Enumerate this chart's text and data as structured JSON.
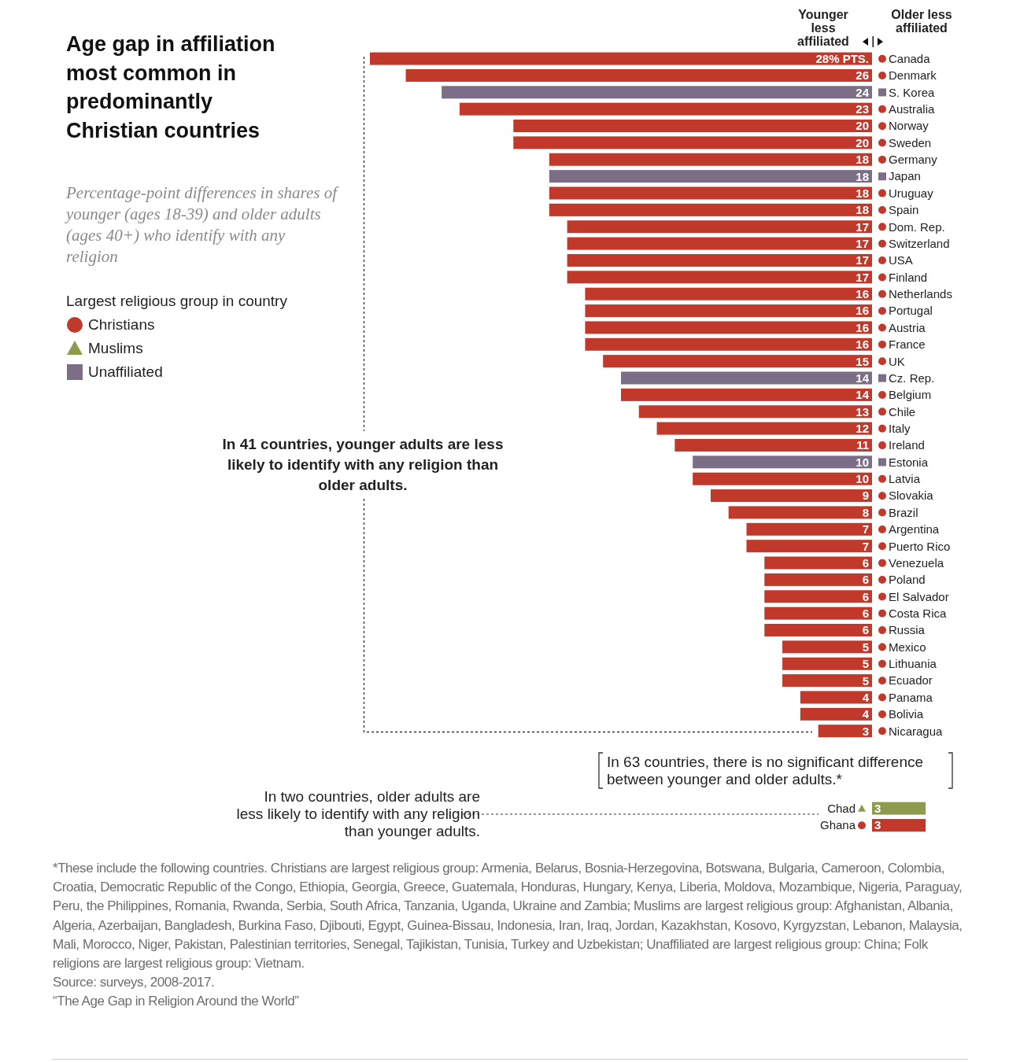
{
  "chart_data": [
    {
      "type": "bar",
      "orientation": "horizontal",
      "stacked": true,
      "title": "Age gap in affiliation most common in predominantly Christian countries",
      "subtitle": "Percentage-point differences in shares of younger (ages 18-39) and older adults (ages 40+) who identify with any religion",
      "legend_title": "Largest religious group in country",
      "legend": "top left",
      "tick_labels": "y",
      "xlim": [
        28,
        0
      ],
      "categories": [
        "Canada",
        "Denmark",
        "S. Korea",
        "Australia",
        "Norway",
        "Sweden",
        "Germany",
        "Japan",
        "Uruguay",
        "Spain",
        "Dom. Rep.",
        "Switzerland",
        "USA",
        "Finland",
        "Netherlands",
        "Portugal",
        "Austria",
        "France",
        "UK",
        "Cz. Rep.",
        "Belgium",
        "Chile",
        "Italy",
        "Ireland",
        "Estonia",
        "Latvia",
        "Slovakia",
        "Brazil",
        "Argentina",
        "Puerto Rico",
        "Venezuela",
        "Poland",
        "El Salvador",
        "Costa Rica",
        "Russia",
        "Mexico",
        "Lithuania",
        "Ecuador",
        "Panama",
        "Bolivia",
        "Nicaragua"
      ],
      "series": [
        {
          "name": "Christians",
          "color": "#c0392b",
          "marker": "circle",
          "values": [
            28,
            26,
            null,
            23,
            20,
            20,
            18,
            null,
            18,
            18,
            17,
            17,
            17,
            17,
            16,
            16,
            16,
            16,
            15,
            null,
            14,
            13,
            12,
            11,
            null,
            10,
            9,
            8,
            7,
            7,
            6,
            6,
            6,
            6,
            6,
            5,
            5,
            5,
            4,
            4,
            3
          ],
          "value_labels": [
            "28% PTS.",
            "26",
            null,
            "23",
            "20",
            "20",
            "18",
            null,
            "18",
            "18",
            "17",
            "17",
            "17",
            "17",
            "16",
            "16",
            "16",
            "16",
            "15",
            null,
            "14",
            "13",
            "12",
            "11",
            null,
            "10",
            "9",
            "8",
            "7",
            "7",
            "6",
            "6",
            "6",
            "6",
            "6",
            "5",
            "5",
            "5",
            "4",
            "4",
            "3"
          ]
        },
        {
          "name": "Muslims",
          "color": "#8e9b4e",
          "marker": "triangle",
          "values": [
            null,
            null,
            null,
            null,
            null,
            null,
            null,
            null,
            null,
            null,
            null,
            null,
            null,
            null,
            null,
            null,
            null,
            null,
            null,
            null,
            null,
            null,
            null,
            null,
            null,
            null,
            null,
            null,
            null,
            null,
            null,
            null,
            null,
            null,
            null,
            null,
            null,
            null,
            null,
            null,
            null
          ]
        },
        {
          "name": "Unaffiliated",
          "color": "#7b6e86",
          "marker": "square",
          "values": [
            null,
            null,
            24,
            null,
            null,
            null,
            null,
            18,
            null,
            null,
            null,
            null,
            null,
            null,
            null,
            null,
            null,
            null,
            null,
            14,
            null,
            null,
            null,
            null,
            10,
            null,
            null,
            null,
            null,
            null,
            null,
            null,
            null,
            null,
            null,
            null,
            null,
            null,
            null,
            null,
            null
          ],
          "value_labels": [
            null,
            null,
            "24",
            null,
            null,
            null,
            null,
            "18",
            null,
            null,
            null,
            null,
            null,
            null,
            null,
            null,
            null,
            null,
            null,
            "14",
            null,
            null,
            null,
            null,
            "10",
            null,
            null,
            null,
            null,
            null,
            null,
            null,
            null,
            null,
            null,
            null,
            null,
            null,
            null,
            null,
            null
          ]
        }
      ],
      "annotations": [
        "Younger less affiliated",
        "Older less affiliated",
        "In 41 countries, younger adults are less likely to identify with any religion than older adults."
      ]
    },
    {
      "type": "bar",
      "orientation": "horizontal",
      "stacked": true,
      "tick_labels": "y",
      "categories": [
        "Chad",
        "Ghana"
      ],
      "series": [
        {
          "color": "#8e9b4e",
          "marker": "triangle",
          "values": [
            3,
            null
          ],
          "value_labels": [
            "3",
            null
          ]
        },
        {
          "color": "#c0392b",
          "marker": "circle",
          "values": [
            null,
            3
          ],
          "value_labels": [
            null,
            "3"
          ]
        }
      ],
      "annotations": [
        "In 63 countries, there is no significant difference between younger and older adults.*",
        "In two countries, older adults are less likely to identify with any religion than younger adults.",
        "*These include the following countries. Christians are largest religious group: Armenia, Belarus, Bosnia-Herzegovina, Botswana, Bulgaria, Cameroon, Colombia, Croatia, Democratic Republic of the Congo, Ethiopia, Georgia, Greece, Guatemala, Honduras, Hungary, Kenya, Liberia, Moldova, Mozambique, Nigeria, Paraguay, Peru, the Philippines, Romania, Rwanda, Serbia, South Africa, Tanzania, Uganda, Ukraine and Zambia; Muslims are largest religious group: Afghanistan, Albania, Algeria, Azerbaijan, Bangladesh, Burkina Faso, Djibouti, Egypt, Guinea-Bissau, Indonesia, Iran, Iraq, Jordan, Kazakhstan, Kosovo, Kyrgyzstan, Lebanon, Malaysia, Mali, Morocco, Niger, Pakistan, Palestinian territories, Senegal, Tajikistan, Tunisia, Turkey and Uzbekistan; Unaffiliated are largest religious group: China; Folk religions are largest religious group: Vietnam.",
        "Source: surveys, 2008-2017.",
        "“The Age Gap in Religion Around the World”"
      ]
    }
  ]
}
